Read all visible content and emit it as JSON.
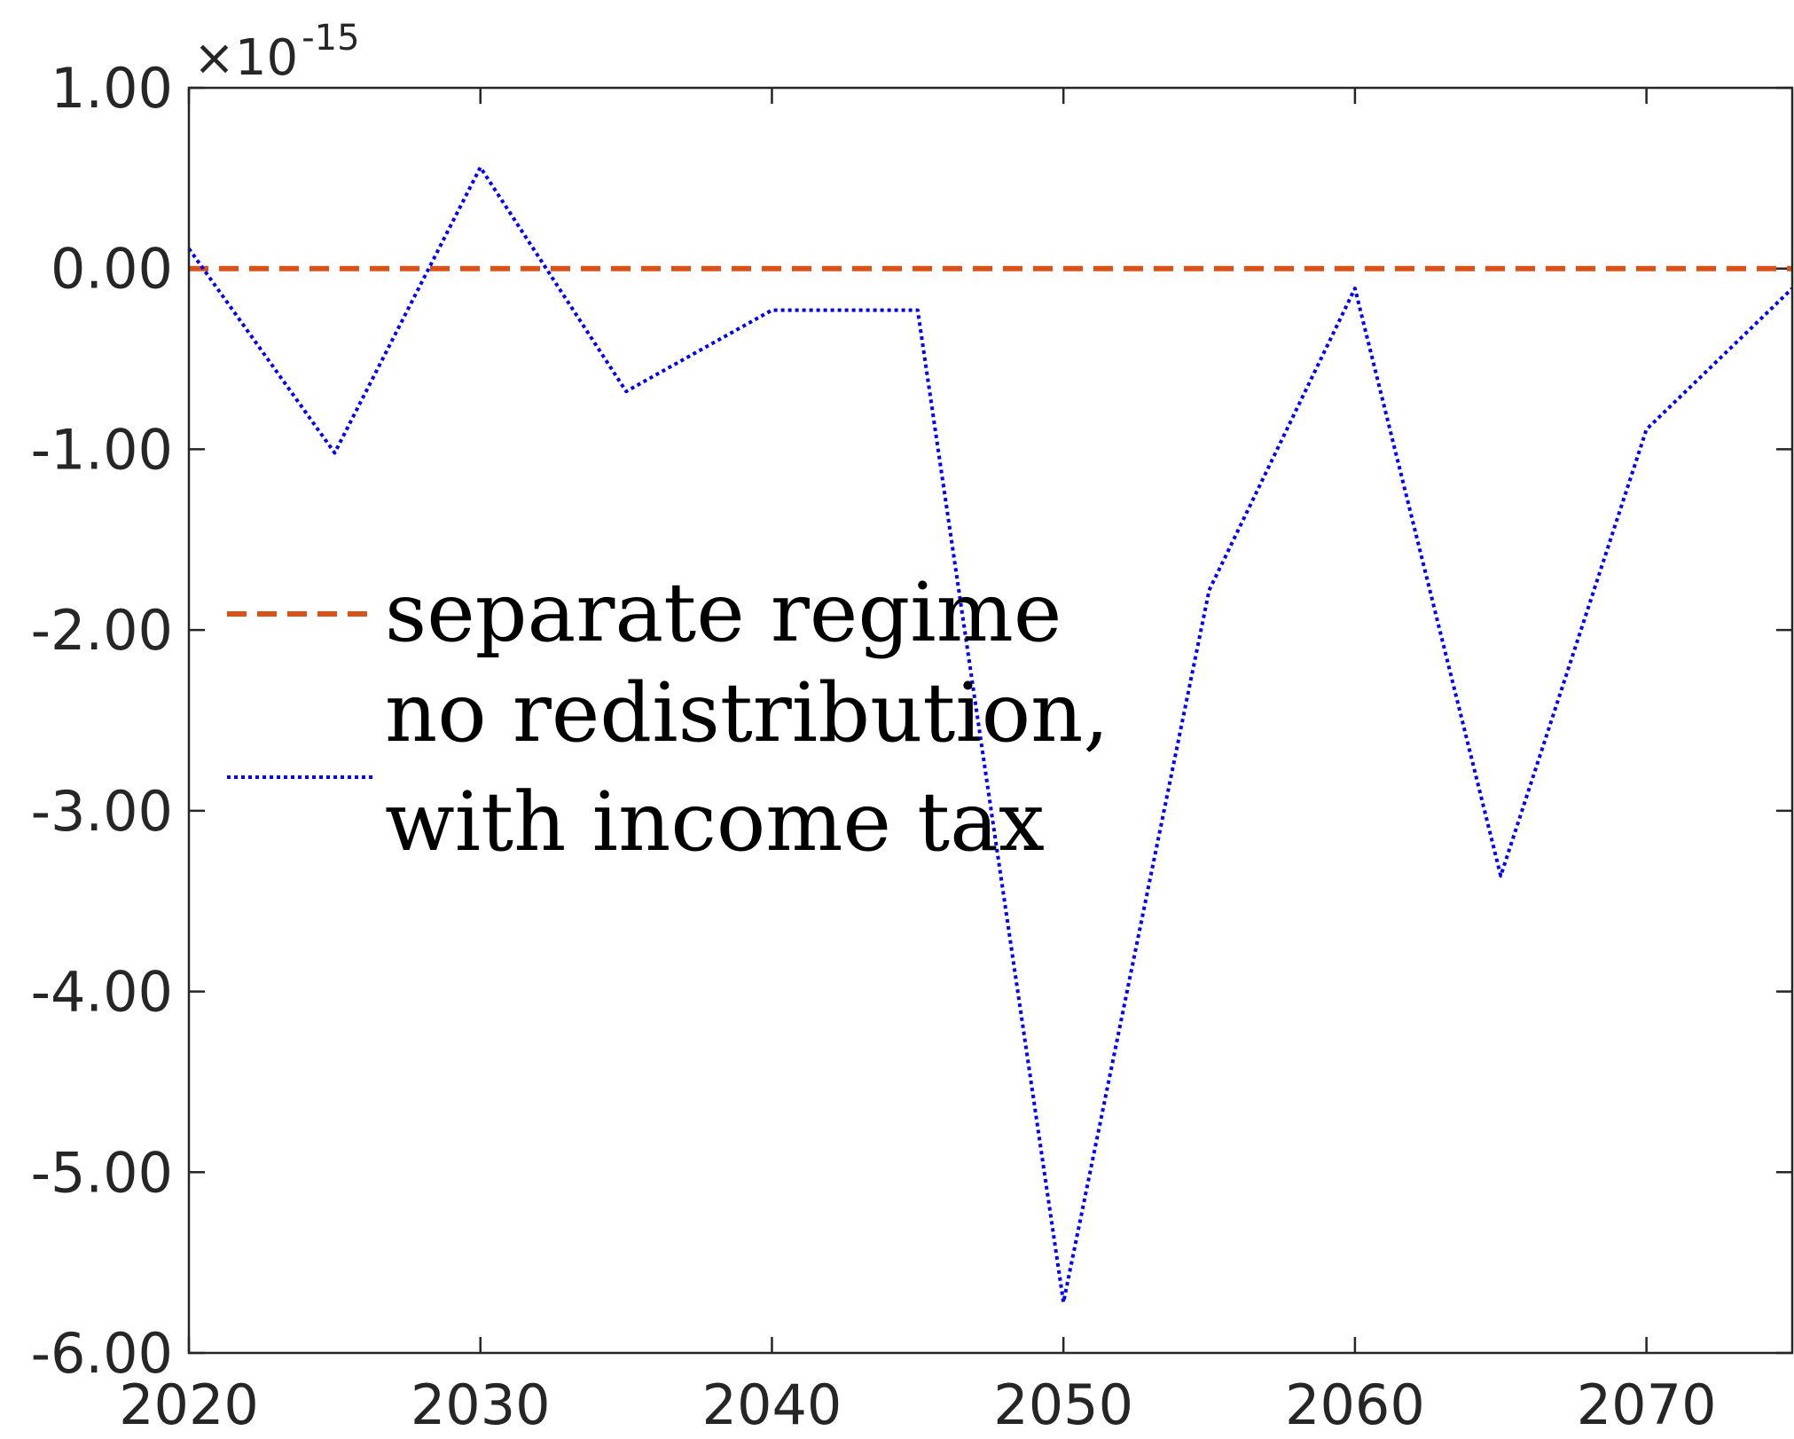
{
  "chart_data": {
    "type": "line",
    "title": "",
    "xlabel": "",
    "ylabel": "",
    "y_multiplier": {
      "prefix": "×10",
      "exponent": "-15"
    },
    "xlim": [
      2020,
      2075
    ],
    "ylim": [
      -6.0,
      1.0
    ],
    "x_ticks": [
      2020,
      2030,
      2040,
      2050,
      2060,
      2070
    ],
    "x_tick_labels": [
      "2020",
      "2030",
      "2040",
      "2050",
      "2060",
      "2070"
    ],
    "y_ticks": [
      1.0,
      0.0,
      -1.0,
      -2.0,
      -3.0,
      -4.0,
      -5.0,
      -6.0
    ],
    "y_tick_labels": [
      "1.00",
      "0.00",
      "-1.00",
      "-2.00",
      "-3.00",
      "-4.00",
      "-5.00",
      "-6.00"
    ],
    "grid": false,
    "legend_placement": "center-left",
    "series": [
      {
        "name": "separate regime",
        "line_style": "dashed",
        "color": "#D95319",
        "x": [
          2020,
          2025,
          2030,
          2035,
          2040,
          2045,
          2050,
          2055,
          2060,
          2065,
          2070,
          2075
        ],
        "y": [
          0,
          0,
          0,
          0,
          0,
          0,
          0,
          0,
          0,
          0,
          0,
          0
        ]
      },
      {
        "name": "no redistribution,",
        "name_line2": "with income tax",
        "line_style": "dotted",
        "color": "#0000FF",
        "x": [
          2020,
          2025,
          2030,
          2035,
          2040,
          2045,
          2050,
          2055,
          2060,
          2065,
          2070,
          2075
        ],
        "y": [
          0.11,
          -1.02,
          0.56,
          -0.68,
          -0.23,
          -0.23,
          -5.72,
          -1.78,
          -0.11,
          -3.36,
          -0.89,
          -0.11
        ]
      }
    ]
  }
}
